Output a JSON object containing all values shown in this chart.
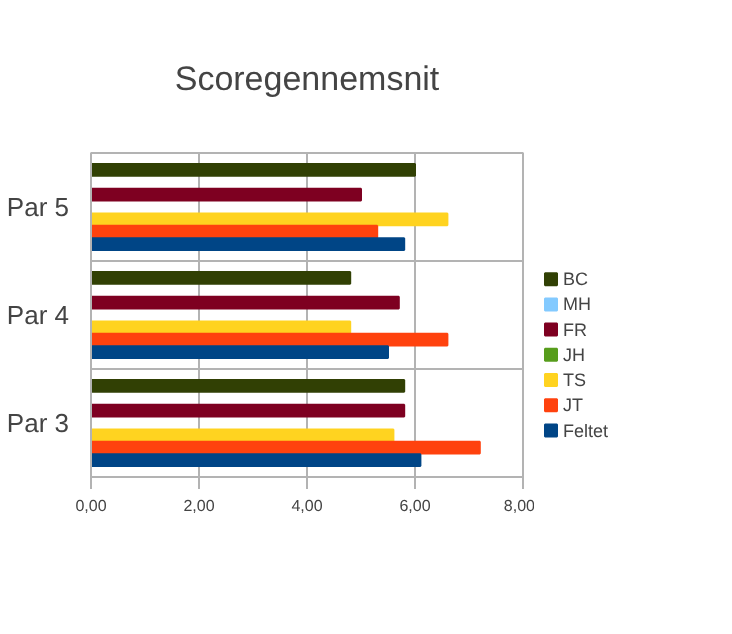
{
  "chart_data": {
    "type": "bar",
    "orientation": "horizontal",
    "title": "Scoregennemsnit",
    "categories": [
      "Par 5",
      "Par 4",
      "Par 3"
    ],
    "series": [
      {
        "name": "BC",
        "color": "#314004",
        "values": [
          6.0,
          4.8,
          5.8
        ]
      },
      {
        "name": "MH",
        "color": "#83caff",
        "values": [
          null,
          null,
          null
        ]
      },
      {
        "name": "FR",
        "color": "#7e0021",
        "values": [
          5.0,
          5.7,
          5.8
        ]
      },
      {
        "name": "JH",
        "color": "#579d1c",
        "values": [
          null,
          null,
          null
        ]
      },
      {
        "name": "TS",
        "color": "#ffd320",
        "values": [
          6.6,
          4.8,
          5.6
        ]
      },
      {
        "name": "JT",
        "color": "#ff420e",
        "values": [
          5.3,
          6.6,
          7.2
        ]
      },
      {
        "name": "Feltet",
        "color": "#004586",
        "values": [
          5.8,
          5.5,
          6.1
        ]
      }
    ],
    "xlim": [
      0,
      8
    ],
    "xticks": [
      {
        "value": 0,
        "label": "0,00"
      },
      {
        "value": 2,
        "label": "2,00"
      },
      {
        "value": 4,
        "label": "4,00"
      },
      {
        "value": 6,
        "label": "6,00"
      },
      {
        "value": 8,
        "label": "8,00"
      }
    ],
    "grid": true,
    "legend": "right"
  }
}
